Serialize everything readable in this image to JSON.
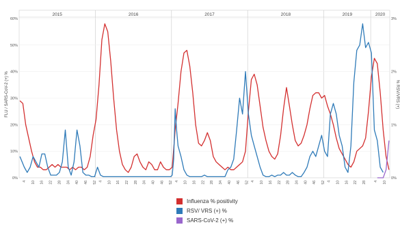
{
  "chart_data": {
    "type": "line",
    "years": [
      "2015",
      "2016",
      "2017",
      "2018",
      "2019",
      "2020"
    ],
    "week_ticks": [
      "4",
      "10",
      "16",
      "22",
      "28",
      "34",
      "40",
      "46",
      "52"
    ],
    "week_ticks_2020": [
      "4",
      "10"
    ],
    "ylabel_left": "FLU / SARS-CoV-2 (+) %",
    "ylabel_right": "% RSV/VRS (+)",
    "left_ticks": [
      "0%",
      "10%",
      "20%",
      "30%",
      "40%",
      "50%",
      "60%"
    ],
    "right_ticks": [
      "0%",
      "1%",
      "2%",
      "3%"
    ],
    "ylim_left": [
      0,
      60
    ],
    "ylim_right": [
      0,
      3
    ],
    "colors": {
      "flu": "#d32f2f",
      "rsv": "#2e7ab8",
      "sars": "#9966cc"
    },
    "series": [
      {
        "name": "Influenza % positivity",
        "axis": "left",
        "points": [
          [
            0,
            29
          ],
          [
            2,
            28
          ],
          [
            4,
            20
          ],
          [
            6,
            15
          ],
          [
            8,
            10
          ],
          [
            10,
            6
          ],
          [
            12,
            4
          ],
          [
            14,
            4
          ],
          [
            16,
            3
          ],
          [
            18,
            3
          ],
          [
            20,
            4
          ],
          [
            22,
            5
          ],
          [
            24,
            4
          ],
          [
            26,
            5
          ],
          [
            28,
            4
          ],
          [
            30,
            4
          ],
          [
            32,
            4
          ],
          [
            34,
            3
          ],
          [
            36,
            4
          ],
          [
            38,
            3
          ],
          [
            40,
            4
          ],
          [
            42,
            4
          ],
          [
            44,
            3
          ],
          [
            46,
            4
          ],
          [
            48,
            8
          ],
          [
            50,
            16
          ],
          [
            52,
            22
          ],
          [
            54,
            35
          ],
          [
            56,
            52
          ],
          [
            58,
            58
          ],
          [
            60,
            55
          ],
          [
            62,
            44
          ],
          [
            64,
            30
          ],
          [
            66,
            18
          ],
          [
            68,
            10
          ],
          [
            70,
            5
          ],
          [
            72,
            3
          ],
          [
            74,
            2
          ],
          [
            76,
            4
          ],
          [
            78,
            8
          ],
          [
            80,
            9
          ],
          [
            82,
            6
          ],
          [
            84,
            4
          ],
          [
            86,
            3
          ],
          [
            88,
            6
          ],
          [
            90,
            5
          ],
          [
            92,
            3
          ],
          [
            94,
            3
          ],
          [
            96,
            6
          ],
          [
            98,
            4
          ],
          [
            100,
            3
          ],
          [
            102,
            3
          ],
          [
            104,
            4
          ],
          [
            106,
            18
          ],
          [
            108,
            28
          ],
          [
            110,
            40
          ],
          [
            112,
            47
          ],
          [
            114,
            48
          ],
          [
            116,
            42
          ],
          [
            118,
            32
          ],
          [
            120,
            20
          ],
          [
            122,
            13
          ],
          [
            124,
            12
          ],
          [
            126,
            14
          ],
          [
            128,
            17
          ],
          [
            130,
            14
          ],
          [
            132,
            8
          ],
          [
            134,
            6
          ],
          [
            136,
            5
          ],
          [
            138,
            4
          ],
          [
            140,
            3
          ],
          [
            142,
            4
          ],
          [
            144,
            3
          ],
          [
            146,
            3
          ],
          [
            148,
            4
          ],
          [
            150,
            5
          ],
          [
            152,
            6
          ],
          [
            154,
            10
          ],
          [
            156,
            25
          ],
          [
            158,
            37
          ],
          [
            160,
            39
          ],
          [
            162,
            35
          ],
          [
            164,
            27
          ],
          [
            166,
            19
          ],
          [
            168,
            14
          ],
          [
            170,
            10
          ],
          [
            172,
            8
          ],
          [
            174,
            7
          ],
          [
            176,
            9
          ],
          [
            178,
            16
          ],
          [
            180,
            26
          ],
          [
            182,
            34
          ],
          [
            184,
            27
          ],
          [
            186,
            20
          ],
          [
            188,
            14
          ],
          [
            190,
            12
          ],
          [
            192,
            13
          ],
          [
            194,
            16
          ],
          [
            196,
            20
          ],
          [
            198,
            26
          ],
          [
            200,
            31
          ],
          [
            202,
            32
          ],
          [
            204,
            32
          ],
          [
            206,
            30
          ],
          [
            208,
            31
          ],
          [
            210,
            27
          ],
          [
            212,
            24
          ],
          [
            214,
            20
          ],
          [
            216,
            15
          ],
          [
            218,
            11
          ],
          [
            220,
            9
          ],
          [
            222,
            7
          ],
          [
            224,
            5
          ],
          [
            226,
            4
          ],
          [
            228,
            6
          ],
          [
            230,
            10
          ],
          [
            232,
            11
          ],
          [
            234,
            12
          ],
          [
            236,
            15
          ],
          [
            238,
            25
          ],
          [
            240,
            38
          ],
          [
            242,
            45
          ],
          [
            244,
            43
          ],
          [
            246,
            32
          ],
          [
            248,
            18
          ],
          [
            250,
            8
          ],
          [
            252,
            3
          ]
        ]
      },
      {
        "name": "RSV/ VRS (+) %",
        "axis": "right",
        "points": [
          [
            0,
            0.4
          ],
          [
            3,
            0.2
          ],
          [
            5,
            0.1
          ],
          [
            7,
            0.2
          ],
          [
            9,
            0.4
          ],
          [
            11,
            0.3
          ],
          [
            13,
            0.2
          ],
          [
            15,
            0.45
          ],
          [
            17,
            0.45
          ],
          [
            19,
            0.2
          ],
          [
            21,
            0.05
          ],
          [
            23,
            0.05
          ],
          [
            25,
            0.05
          ],
          [
            27,
            0.1
          ],
          [
            29,
            0.3
          ],
          [
            31,
            0.9
          ],
          [
            33,
            0.2
          ],
          [
            35,
            0.05
          ],
          [
            37,
            0.3
          ],
          [
            39,
            0.9
          ],
          [
            41,
            0.6
          ],
          [
            43,
            0.1
          ],
          [
            45,
            0.05
          ],
          [
            47,
            0.05
          ],
          [
            49,
            0.02
          ],
          [
            51,
            0.02
          ],
          [
            53,
            0.2
          ],
          [
            55,
            0.05
          ],
          [
            57,
            0.02
          ],
          [
            59,
            0.02
          ],
          [
            61,
            0.02
          ],
          [
            63,
            0.02
          ],
          [
            65,
            0.02
          ],
          [
            67,
            0.02
          ],
          [
            69,
            0.02
          ],
          [
            71,
            0.02
          ],
          [
            73,
            0.02
          ],
          [
            75,
            0.02
          ],
          [
            77,
            0.02
          ],
          [
            79,
            0.02
          ],
          [
            81,
            0.02
          ],
          [
            83,
            0.02
          ],
          [
            85,
            0.02
          ],
          [
            87,
            0.02
          ],
          [
            89,
            0.02
          ],
          [
            91,
            0.02
          ],
          [
            93,
            0.02
          ],
          [
            95,
            0.02
          ],
          [
            97,
            0.02
          ],
          [
            99,
            0.02
          ],
          [
            101,
            0.02
          ],
          [
            103,
            0.02
          ],
          [
            104,
            0.05
          ],
          [
            105,
            0.35
          ],
          [
            106,
            1.3
          ],
          [
            107,
            0.9
          ],
          [
            108,
            0.6
          ],
          [
            110,
            0.4
          ],
          [
            112,
            0.15
          ],
          [
            114,
            0.05
          ],
          [
            116,
            0.02
          ],
          [
            118,
            0.02
          ],
          [
            120,
            0.02
          ],
          [
            122,
            0.02
          ],
          [
            124,
            0.02
          ],
          [
            126,
            0.05
          ],
          [
            128,
            0.02
          ],
          [
            130,
            0.02
          ],
          [
            132,
            0.02
          ],
          [
            134,
            0.02
          ],
          [
            136,
            0.02
          ],
          [
            138,
            0.02
          ],
          [
            140,
            0.02
          ],
          [
            142,
            0.15
          ],
          [
            144,
            0.2
          ],
          [
            146,
            0.35
          ],
          [
            148,
            0.9
          ],
          [
            150,
            1.5
          ],
          [
            152,
            1.2
          ],
          [
            154,
            2.0
          ],
          [
            156,
            1.2
          ],
          [
            158,
            0.8
          ],
          [
            160,
            0.6
          ],
          [
            162,
            0.4
          ],
          [
            164,
            0.2
          ],
          [
            166,
            0.05
          ],
          [
            168,
            0.02
          ],
          [
            170,
            0.02
          ],
          [
            172,
            0.05
          ],
          [
            174,
            0.02
          ],
          [
            176,
            0.05
          ],
          [
            178,
            0.05
          ],
          [
            180,
            0.1
          ],
          [
            182,
            0.05
          ],
          [
            184,
            0.05
          ],
          [
            186,
            0.1
          ],
          [
            188,
            0.05
          ],
          [
            190,
            0.02
          ],
          [
            192,
            0.02
          ],
          [
            194,
            0.1
          ],
          [
            196,
            0.2
          ],
          [
            198,
            0.4
          ],
          [
            200,
            0.5
          ],
          [
            202,
            0.4
          ],
          [
            204,
            0.6
          ],
          [
            206,
            0.8
          ],
          [
            208,
            0.5
          ],
          [
            210,
            0.4
          ],
          [
            212,
            1.2
          ],
          [
            214,
            1.4
          ],
          [
            216,
            1.2
          ],
          [
            218,
            0.8
          ],
          [
            220,
            0.6
          ],
          [
            222,
            0.2
          ],
          [
            224,
            0.1
          ],
          [
            226,
            0.6
          ],
          [
            228,
            1.8
          ],
          [
            230,
            2.4
          ],
          [
            232,
            2.5
          ],
          [
            234,
            2.9
          ],
          [
            236,
            2.45
          ],
          [
            238,
            2.55
          ],
          [
            240,
            2.35
          ],
          [
            242,
            0.9
          ],
          [
            244,
            0.7
          ],
          [
            246,
            0.2
          ],
          [
            248,
            0.1
          ]
        ]
      },
      {
        "name": "SARS-CoV-2 (+) %",
        "axis": "left",
        "points": [
          [
            244,
            0
          ],
          [
            246,
            0
          ],
          [
            248,
            0
          ],
          [
            250,
            3
          ],
          [
            252,
            14
          ]
        ]
      }
    ],
    "legend": {
      "entries": [
        "Influenza % positivity",
        "RSV/ VRS (+) %",
        "SARS-CoV-2 (+) %"
      ],
      "placement": "bottom"
    }
  }
}
